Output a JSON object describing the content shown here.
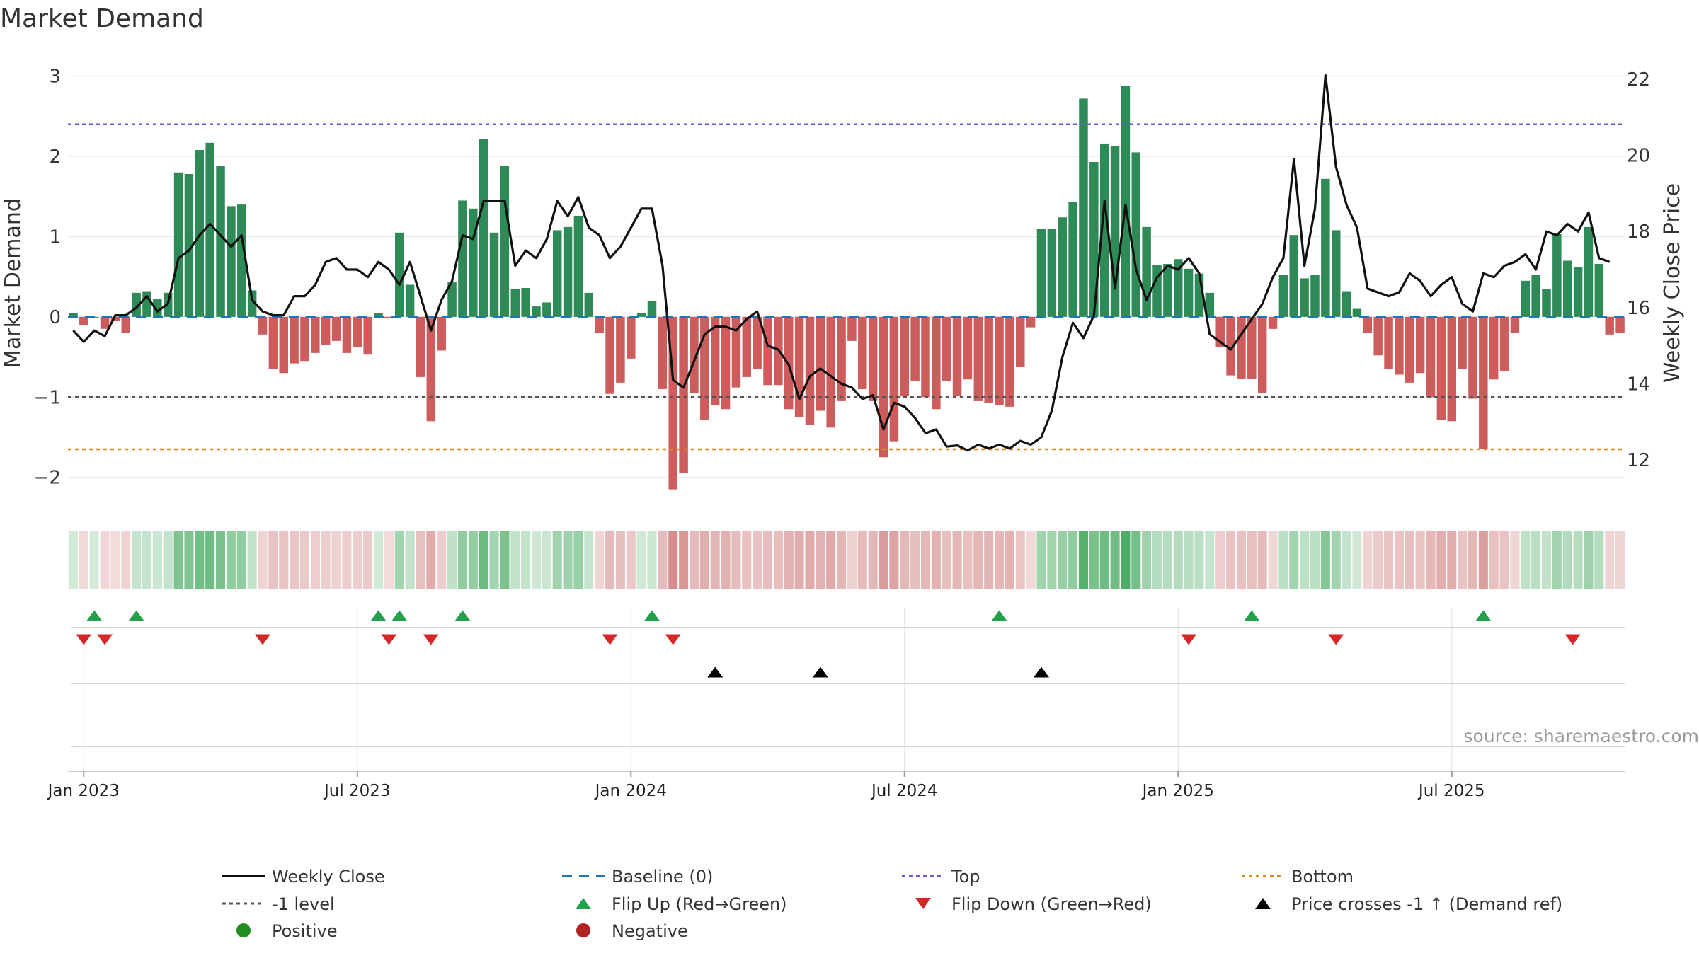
{
  "chart_data": {
    "type": "bar",
    "title": "Market Demand",
    "ylabel": "Market Demand",
    "y2label": "Weekly Close Price",
    "ylim": [
      -2.4,
      3.2
    ],
    "y2lim": [
      10.7,
      22.5
    ],
    "yticks": [
      3,
      2,
      1,
      0,
      -1,
      -2
    ],
    "ytick_labels": [
      "3",
      "2",
      "1",
      "0",
      "−1",
      "−2"
    ],
    "y2ticks": [
      22,
      20,
      18,
      16,
      14,
      12
    ],
    "y2tick_labels": [
      "22",
      "20",
      "18",
      "16",
      "14",
      "12"
    ],
    "xtick_labels": [
      "Jan 2023",
      "Jul 2023",
      "Jan 2024",
      "Jul 2024",
      "Jan 2025",
      "Jul 2025"
    ],
    "xtick_weeks": [
      1.5,
      27.5,
      53.5,
      79.5,
      105.5,
      131.5
    ],
    "levels": {
      "top": 2.4,
      "minus_one": -1.0,
      "bottom": -1.65
    },
    "colors": {
      "positive": "#2e8b57",
      "negative": "#cd5c5c",
      "price": "#111111",
      "baseline": "#1f77b4",
      "top": "#6a5acd",
      "minus_one": "#555555",
      "bottom": "#e08a1e",
      "flip_up": "#22a04b",
      "flip_down": "#d62728",
      "cross": "#000000"
    },
    "demand": [
      0.05,
      -0.1,
      0.0,
      -0.15,
      -0.05,
      -0.2,
      0.3,
      0.32,
      0.22,
      0.3,
      1.8,
      1.78,
      2.08,
      2.17,
      1.88,
      1.38,
      1.4,
      0.33,
      -0.22,
      -0.65,
      -0.7,
      -0.58,
      -0.55,
      -0.45,
      -0.35,
      -0.3,
      -0.45,
      -0.38,
      -0.47,
      0.05,
      -0.02,
      1.05,
      0.4,
      -0.75,
      -1.3,
      -0.42,
      0.43,
      1.45,
      1.35,
      2.22,
      1.05,
      1.88,
      0.35,
      0.36,
      0.13,
      0.18,
      1.08,
      1.12,
      1.26,
      0.3,
      -0.2,
      -0.96,
      -0.82,
      -0.52,
      0.05,
      0.2,
      -0.9,
      -2.15,
      -1.95,
      -0.95,
      -1.28,
      -1.1,
      -1.15,
      -0.88,
      -0.75,
      -0.65,
      -0.85,
      -0.85,
      -1.15,
      -1.25,
      -1.35,
      -1.17,
      -1.38,
      -1.05,
      -0.3,
      -0.9,
      -1.05,
      -1.75,
      -1.55,
      -0.98,
      -0.8,
      -1.0,
      -1.15,
      -0.8,
      -0.98,
      -0.78,
      -1.05,
      -1.07,
      -1.1,
      -1.12,
      -0.62,
      -0.13,
      1.1,
      1.1,
      1.24,
      1.43,
      2.72,
      1.93,
      2.16,
      2.13,
      2.88,
      2.05,
      1.12,
      0.65,
      0.66,
      0.72,
      0.6,
      0.54,
      0.3,
      -0.38,
      -0.73,
      -0.77,
      -0.77,
      -0.95,
      -0.15,
      0.52,
      1.02,
      0.48,
      0.52,
      1.72,
      1.08,
      0.32,
      0.1,
      -0.2,
      -0.48,
      -0.65,
      -0.72,
      -0.82,
      -0.7,
      -1.0,
      -1.28,
      -1.3,
      -0.65,
      -1.02,
      -1.65,
      -0.78,
      -0.68,
      -0.2,
      0.45,
      0.52,
      0.35,
      1.03,
      0.7,
      0.62,
      1.12,
      0.66,
      -0.22,
      -0.2
    ],
    "price": [
      15.4,
      15.1,
      15.4,
      15.25,
      15.8,
      15.8,
      16.0,
      16.3,
      15.9,
      16.1,
      17.3,
      17.5,
      17.9,
      18.2,
      17.9,
      17.6,
      17.9,
      16.2,
      15.9,
      15.8,
      15.8,
      16.3,
      16.3,
      16.6,
      17.2,
      17.3,
      17.0,
      17.0,
      16.8,
      17.2,
      17.0,
      16.6,
      17.2,
      16.3,
      15.4,
      16.2,
      16.7,
      17.9,
      17.8,
      18.8,
      18.8,
      18.8,
      17.1,
      17.5,
      17.3,
      17.8,
      18.8,
      18.4,
      18.9,
      18.1,
      17.9,
      17.3,
      17.6,
      18.1,
      18.6,
      18.6,
      17.1,
      14.1,
      13.9,
      14.6,
      15.3,
      15.5,
      15.5,
      15.4,
      15.7,
      15.9,
      15.0,
      14.9,
      14.5,
      13.6,
      14.2,
      14.4,
      14.2,
      14.0,
      13.9,
      13.6,
      13.7,
      12.8,
      13.5,
      13.4,
      13.1,
      12.7,
      12.8,
      12.35,
      12.38,
      12.25,
      12.4,
      12.3,
      12.4,
      12.3,
      12.5,
      12.4,
      12.6,
      13.3,
      14.7,
      15.6,
      15.2,
      15.8,
      18.8,
      16.5,
      18.7,
      17.0,
      16.2,
      16.8,
      17.1,
      17.0,
      17.3,
      16.9,
      15.3,
      15.1,
      14.9,
      15.3,
      15.7,
      16.1,
      16.8,
      17.3,
      19.9,
      17.1,
      18.6,
      22.1,
      19.7,
      18.7,
      18.1,
      16.5,
      16.4,
      16.3,
      16.4,
      16.9,
      16.7,
      16.3,
      16.6,
      16.8,
      16.1,
      15.9,
      16.9,
      16.8,
      17.1,
      17.2,
      17.4,
      17.0,
      18.0,
      17.9,
      18.2,
      18.0,
      18.5,
      17.3,
      17.2
    ],
    "flip_up_weeks": [
      2.5,
      6.5,
      29.5,
      31.5,
      37.5,
      55.5,
      88.5,
      112.5,
      134.5
    ],
    "flip_down_weeks": [
      1.5,
      3.5,
      18.5,
      30.5,
      34.5,
      51.5,
      57.5,
      106.5,
      120.5,
      143.0
    ],
    "cross_weeks": [
      61.5,
      71.5,
      92.5
    ],
    "legend": {
      "weekly_close": "Weekly Close",
      "baseline": "Baseline (0)",
      "top": "Top",
      "bottom": "Bottom",
      "minus_one": "-1 level",
      "flip_up": "Flip Up (Red→Green)",
      "flip_down": "Flip Down (Green→Red)",
      "cross": "Price crosses -1 ↑ (Demand ref)",
      "positive": "Positive",
      "negative": "Negative"
    },
    "source": "source: sharemaestro.com"
  }
}
